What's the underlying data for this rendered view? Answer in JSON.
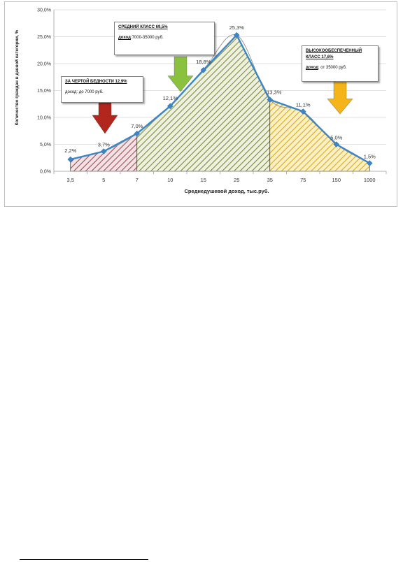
{
  "chart_data": {
    "type": "line",
    "x_label": "Среднедушевой доход, тыс.руб.",
    "y_label": "Количество граждан в данной категории, %",
    "y_ticks": [
      "0,0%",
      "5,0%",
      "10,0%",
      "15,0%",
      "20,0%",
      "25,0%",
      "30,0%"
    ],
    "ylim": [
      0,
      30
    ],
    "categories": [
      "3,5",
      "5",
      "7",
      "10",
      "15",
      "25",
      "35",
      "75",
      "150",
      "1000"
    ],
    "series": [
      {
        "values": [
          2.2,
          3.7,
          7.0,
          12.1,
          18.8,
          25.3,
          13.3,
          11.1,
          5.0,
          1.5
        ]
      }
    ],
    "data_labels": [
      "2,2%",
      "3,7%",
      "7,0%",
      "12,1%",
      "18,8%",
      "25,3%",
      "13,3%",
      "11,1%",
      "5,0%",
      "1,5%"
    ],
    "grid": "horizontal",
    "regions": [
      {
        "name": "poverty",
        "color": "#c9a0a8"
      },
      {
        "name": "middle",
        "color": "#b7c28f"
      },
      {
        "name": "high",
        "color": "#f1d877"
      }
    ],
    "colors": {
      "line": "#3d86c6",
      "marker": "#3d86c6",
      "smooth": "#909090",
      "arrow_red": "#b3261e",
      "arrow_green": "#8ac23f",
      "arrow_yellow": "#f4b41a"
    }
  },
  "annotations": {
    "poverty": {
      "title": "ЗА ЧЕРТОЙ БЕДНОСТИ 12,9%",
      "body": "доход: до 7000 руб."
    },
    "middle": {
      "title": "СРЕДНИЙ КЛАСС 69,5%",
      "body_bold": "доход",
      "body_rest": ":7000-35000 руб."
    },
    "high": {
      "title": "ВЫСОКООБЕСПЕЧЕННЫЙ КЛАСС 17,6%",
      "body_bold": "доход",
      "body_rest": ": от 35000 руб."
    }
  }
}
